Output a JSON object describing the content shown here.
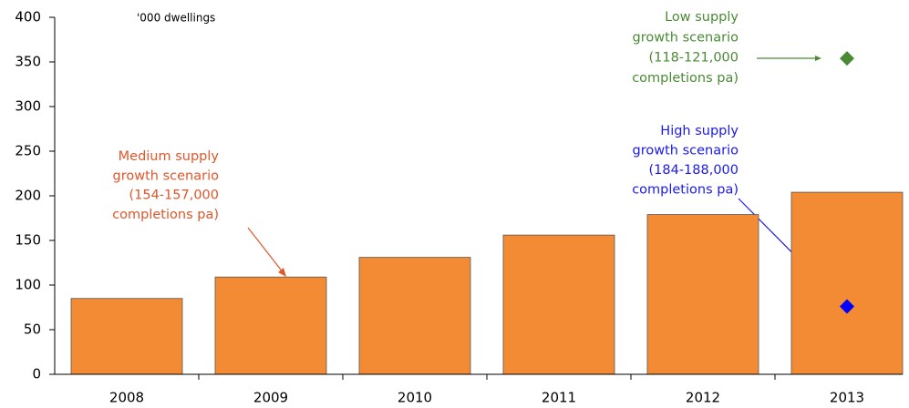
{
  "chart_data": {
    "type": "bar",
    "unit_label": "'000 dwellings",
    "categories": [
      "2008",
      "2009",
      "2010",
      "2011",
      "2012",
      "2013"
    ],
    "values": [
      85,
      109,
      131,
      156,
      179,
      204
    ],
    "color": "#f38b35",
    "ylim": [
      0,
      400
    ],
    "yticks": [
      0,
      50,
      100,
      150,
      200,
      250,
      300,
      350,
      400
    ],
    "points": [
      {
        "x": "2013",
        "y": 354,
        "color": "#4a8a35"
      },
      {
        "x": "2013",
        "y": 76,
        "color": "#0000ff"
      }
    ],
    "annotations": [
      {
        "lines": [
          "Medium supply",
          "growth scenario",
          "(154-157,000",
          "completions pa)"
        ],
        "color": "#e0562a"
      },
      {
        "lines": [
          "High supply",
          "growth scenario",
          "(184-188,000",
          "completions pa)"
        ],
        "color": "#1a1aee"
      },
      {
        "lines": [
          "Low supply",
          "growth scenario",
          "(118-121,000",
          "completions pa)"
        ],
        "color": "#4a8a35"
      }
    ]
  }
}
